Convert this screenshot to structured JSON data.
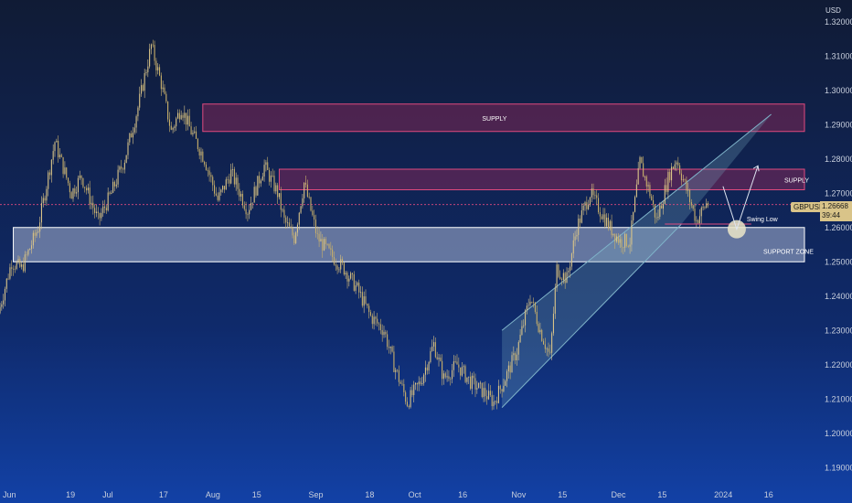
{
  "currency_label": "USD",
  "symbol": "GBPUSD",
  "last_price": "1.26668",
  "countdown": "39:44",
  "chart_data": {
    "type": "candlestick",
    "ylim": [
      1.185,
      1.325
    ],
    "y_ticks": [
      1.19,
      1.2,
      1.21,
      1.22,
      1.23,
      1.24,
      1.25,
      1.26,
      1.27,
      1.28,
      1.29,
      1.3,
      1.31,
      1.32
    ],
    "y_tick_labels": [
      "1.19000",
      "1.20000",
      "1.21000",
      "1.22000",
      "1.23000",
      "1.24000",
      "1.25000",
      "1.26000",
      "1.27000",
      "1.28000",
      "1.29000",
      "1.30000",
      "1.31000",
      "1.32000"
    ],
    "x_ticks": [
      {
        "label": "Jun",
        "day": 0
      },
      {
        "label": "19",
        "day": 19
      },
      {
        "label": "Jul",
        "day": 30
      },
      {
        "label": "17",
        "day": 47
      },
      {
        "label": "Aug",
        "day": 61
      },
      {
        "label": "15",
        "day": 75
      },
      {
        "label": "Sep",
        "day": 92
      },
      {
        "label": "18",
        "day": 109
      },
      {
        "label": "Oct",
        "day": 122
      },
      {
        "label": "16",
        "day": 137
      },
      {
        "label": "Nov",
        "day": 153
      },
      {
        "label": "15",
        "day": 167
      },
      {
        "label": "Dec",
        "day": 183
      },
      {
        "label": "15",
        "day": 197
      },
      {
        "label": "2024",
        "day": 214
      },
      {
        "label": "16",
        "day": 229
      }
    ],
    "xlim": [
      0,
      242
    ],
    "anchor_path": [
      [
        0,
        1.235
      ],
      [
        4,
        1.25
      ],
      [
        7,
        1.248
      ],
      [
        12,
        1.26
      ],
      [
        17,
        1.285
      ],
      [
        22,
        1.27
      ],
      [
        25,
        1.275
      ],
      [
        30,
        1.262
      ],
      [
        34,
        1.27
      ],
      [
        38,
        1.28
      ],
      [
        42,
        1.295
      ],
      [
        46,
        1.313
      ],
      [
        49,
        1.302
      ],
      [
        52,
        1.288
      ],
      [
        55,
        1.295
      ],
      [
        58,
        1.288
      ],
      [
        62,
        1.28
      ],
      [
        66,
        1.268
      ],
      [
        70,
        1.276
      ],
      [
        75,
        1.265
      ],
      [
        80,
        1.278
      ],
      [
        84,
        1.27
      ],
      [
        86,
        1.262
      ],
      [
        89,
        1.257
      ],
      [
        92,
        1.273
      ],
      [
        96,
        1.257
      ],
      [
        100,
        1.252
      ],
      [
        104,
        1.248
      ],
      [
        108,
        1.242
      ],
      [
        112,
        1.234
      ],
      [
        116,
        1.23
      ],
      [
        119,
        1.22
      ],
      [
        123,
        1.209
      ],
      [
        127,
        1.215
      ],
      [
        131,
        1.226
      ],
      [
        134,
        1.216
      ],
      [
        138,
        1.22
      ],
      [
        142,
        1.215
      ],
      [
        146,
        1.212
      ],
      [
        149,
        1.209
      ],
      [
        152,
        1.215
      ],
      [
        156,
        1.224
      ],
      [
        160,
        1.24
      ],
      [
        163,
        1.23
      ],
      [
        166,
        1.222
      ],
      [
        168,
        1.248
      ],
      [
        171,
        1.245
      ],
      [
        174,
        1.26
      ],
      [
        178,
        1.27
      ],
      [
        181,
        1.265
      ],
      [
        184,
        1.26
      ],
      [
        187,
        1.256
      ],
      [
        190,
        1.256
      ],
      [
        193,
        1.279
      ],
      [
        196,
        1.27
      ],
      [
        198,
        1.262
      ],
      [
        202,
        1.276
      ],
      [
        204,
        1.28
      ],
      [
        207,
        1.271
      ],
      [
        210,
        1.262
      ],
      [
        213,
        1.267
      ]
    ],
    "zones": [
      {
        "name": "SUPPLY",
        "label": "SUPPLY",
        "from_day": 61,
        "to_day": 242,
        "low": 1.288,
        "high": 1.296,
        "fill": "rgba(176,42,92,0.38)",
        "stroke": "#e04a7f"
      },
      {
        "name": "SUPPLY-2",
        "label": "SUPPLY",
        "from_day": 84,
        "to_day": 242,
        "low": 1.271,
        "high": 1.277,
        "fill": "rgba(176,42,92,0.38)",
        "stroke": "#e04a7f"
      },
      {
        "name": "SUPPORT ZONE",
        "label": "SUPPORT ZONE",
        "from_day": 4,
        "to_day": 242,
        "low": 1.25,
        "high": 1.26,
        "fill": "rgba(205,215,240,0.45)",
        "stroke": "#ffffff"
      }
    ],
    "channel": {
      "lower": [
        [
          151,
          1.2075
        ],
        [
          205,
          1.261
        ]
      ],
      "upper": [
        [
          151,
          1.23
        ],
        [
          232,
          1.293
        ]
      ],
      "fill": "rgba(120,170,190,0.28)",
      "stroke": "#7fb3c9"
    },
    "swing_low": {
      "day": 200,
      "price": 1.261,
      "to_day": 226,
      "label": "Swing Low"
    },
    "projection": [
      [
        223,
        1.2595
      ],
      [
        228,
        1.278
      ]
    ],
    "current_price_line": 1.26668,
    "colors": {
      "bull": "#d9c489",
      "bear": "#c9b06a",
      "zone_red": "#e04a7f",
      "price_tag": "#d9c489"
    }
  }
}
